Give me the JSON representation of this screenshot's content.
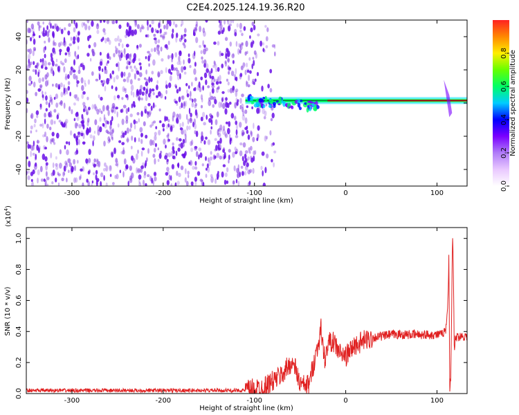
{
  "figure_title": "C2E4.2025.124.19.36.R20",
  "colors": {
    "dots": "#7a2ee0",
    "dots_strong": "#6a10e8",
    "snr_line": "#e02020",
    "colormap": [
      "#ffffff",
      "#e9c8ff",
      "#b07cf8",
      "#7a00ff",
      "#0000ff",
      "#00ccff",
      "#00ff66",
      "#66ff00",
      "#ffee00",
      "#ff8800",
      "#ff2222"
    ]
  },
  "chart_data": [
    {
      "type": "heatmap",
      "xlabel": "Height of straight line (km)",
      "ylabel": "Frequency (Hz)",
      "xlim": [
        -350,
        133
      ],
      "ylim": [
        -50,
        50
      ],
      "xticks": [
        -300,
        -200,
        -100,
        0,
        100
      ],
      "xtick_labels": [
        "-300",
        "-200",
        "-100",
        "0",
        "100"
      ],
      "yticks": [
        -40,
        -20,
        0,
        20,
        40
      ],
      "ytick_labels": [
        "-40",
        "-20",
        "0",
        "20",
        "40"
      ],
      "colorbar": {
        "label": "Normalized spectral amplitude",
        "range": [
          0.0,
          1.0
        ],
        "ticks": [
          0.0,
          0.2,
          0.4,
          0.6,
          0.8
        ],
        "tick_labels": [
          "0.0",
          "0.2",
          "0.4",
          "0.6",
          "0.8"
        ]
      },
      "noise_region_x": [
        -350,
        -100
      ],
      "signal_band": {
        "center_freq_hz": 1.5,
        "x_start": -110,
        "x_end": 133,
        "disturbed_segment_x": [
          -110,
          -30
        ],
        "spike_x": 112
      }
    },
    {
      "type": "line",
      "xlabel": "Height of straight line (km)",
      "ylabel": "SNR (10 * v/v)",
      "scale_label": "(x10",
      "scale_exponent": "4",
      "xlim": [
        -350,
        133
      ],
      "ylim": [
        0,
        1.07
      ],
      "xticks": [
        -300,
        -200,
        -100,
        0,
        100
      ],
      "xtick_labels": [
        "-300",
        "-200",
        "-100",
        "0",
        "100"
      ],
      "yticks": [
        0,
        0.2,
        0.4,
        0.6,
        0.8,
        1.0
      ],
      "ytick_labels": [
        "0.0",
        "0.2",
        "0.4",
        "0.6",
        "0.8",
        "1.0"
      ],
      "series": [
        {
          "x": [
            -350,
            -300,
            -200,
            -110,
            -90,
            -70,
            -60,
            -55,
            -50,
            -45,
            -40,
            -35,
            -30,
            -27,
            -25,
            -22,
            -20,
            -15,
            -10,
            -5,
            0,
            10,
            20,
            30,
            40,
            50,
            60,
            70,
            80,
            90,
            100,
            105,
            108,
            110,
            112,
            113,
            114,
            115,
            116,
            117,
            118,
            119,
            120,
            125,
            133
          ],
          "y": [
            0.02,
            0.02,
            0.02,
            0.02,
            0.04,
            0.12,
            0.2,
            0.16,
            0.06,
            0.05,
            0.06,
            0.2,
            0.32,
            0.42,
            0.3,
            0.2,
            0.32,
            0.34,
            0.3,
            0.25,
            0.24,
            0.31,
            0.34,
            0.36,
            0.37,
            0.38,
            0.38,
            0.38,
            0.38,
            0.38,
            0.38,
            0.38,
            0.4,
            0.42,
            0.6,
            0.9,
            0.04,
            0.08,
            0.5,
            1.05,
            0.78,
            0.25,
            0.36,
            0.37,
            0.37
          ]
        }
      ]
    }
  ]
}
